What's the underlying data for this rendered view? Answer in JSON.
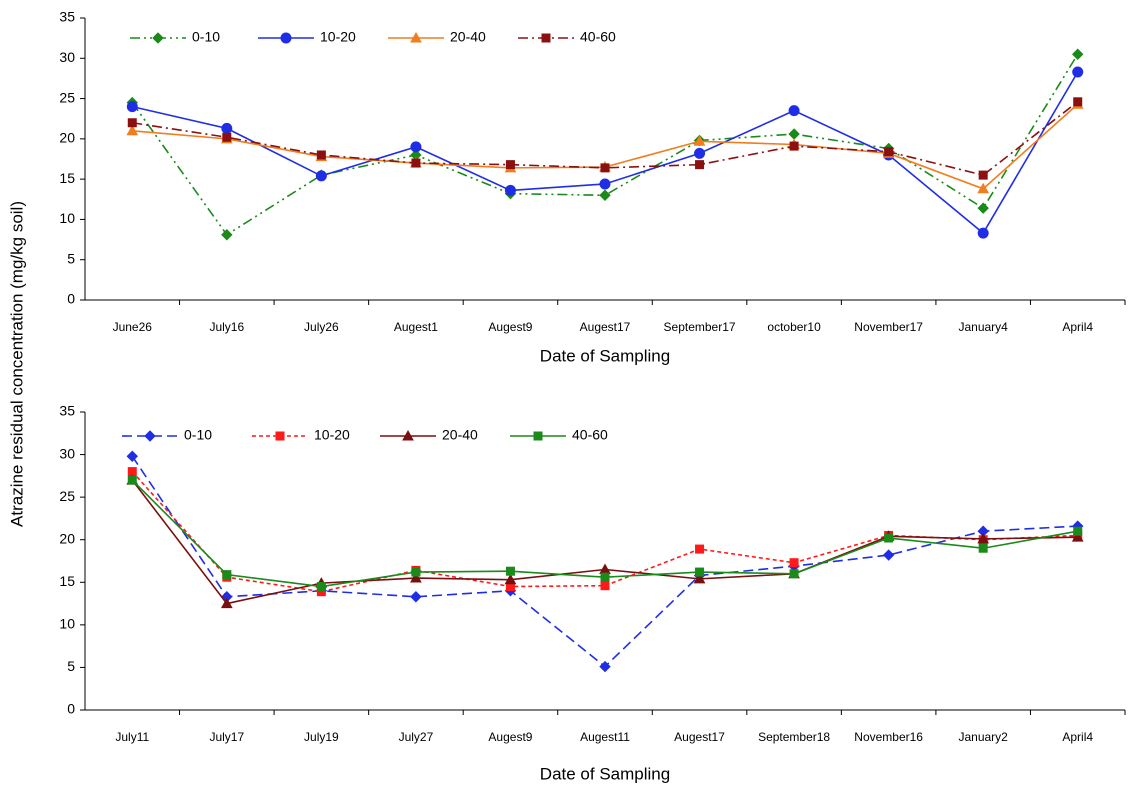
{
  "chart_data": [
    {
      "type": "line",
      "xlabel": "Date of Sampling",
      "ylabel": "Atrazine residual concentration (mg/kg soil)",
      "categories": [
        "June26",
        "July16",
        "July26",
        "Augest1",
        "Augest9",
        "Augest17",
        "September17",
        "october10",
        "November17",
        "January4",
        "April4"
      ],
      "ylim": [
        0,
        35
      ],
      "yticks": [
        0,
        5,
        10,
        15,
        20,
        25,
        30,
        35
      ],
      "grid": false,
      "legend": "top-left",
      "series": [
        {
          "name": "0-10",
          "color": "#1a8a1a",
          "marker": "diamond",
          "dash": "10 4 2 4 2 4",
          "values": [
            24.5,
            8.1,
            15.5,
            18,
            13.2,
            13,
            19.8,
            20.6,
            18.8,
            11.4,
            30.5
          ]
        },
        {
          "name": "10-20",
          "color": "#1f2ee6",
          "marker": "circle",
          "dash": "none",
          "values": [
            24,
            21.3,
            15.4,
            19,
            13.6,
            14.4,
            18.2,
            23.5,
            18,
            8.3,
            28.3
          ]
        },
        {
          "name": "20-40",
          "color": "#f07d1e",
          "marker": "triangle",
          "dash": "none",
          "values": [
            21,
            20,
            17.8,
            17,
            16.4,
            16.5,
            19.7,
            19.3,
            18.2,
            13.8,
            24.3
          ]
        },
        {
          "name": "40-60",
          "color": "#8b1010",
          "marker": "square",
          "dash": "10 4 2 4",
          "values": [
            22,
            20.2,
            18,
            17,
            16.8,
            16.4,
            16.8,
            19.1,
            18.4,
            15.5,
            24.6
          ]
        }
      ]
    },
    {
      "type": "line",
      "xlabel": "Date of Sampling",
      "categories": [
        "July11",
        "July17",
        "July19",
        "July27",
        "Augest9",
        "Augest11",
        "Augest17",
        "September18",
        "November16",
        "January2",
        "April4"
      ],
      "ylim": [
        0,
        35
      ],
      "yticks": [
        0,
        5,
        10,
        15,
        20,
        25,
        30,
        35
      ],
      "grid": false,
      "legend": "top-left",
      "series": [
        {
          "name": "0-10",
          "color": "#1f2ee6",
          "marker": "diamond",
          "dash": "10 5",
          "values": [
            29.8,
            13.3,
            14,
            13.3,
            14,
            5.1,
            15.8,
            16.9,
            18.2,
            21,
            21.6
          ]
        },
        {
          "name": "10-20",
          "color": "#ff1a1a",
          "marker": "square",
          "dash": "4 3",
          "values": [
            28,
            15.6,
            13.9,
            16.4,
            14.5,
            14.6,
            18.9,
            17.3,
            20.5,
            20,
            20.5
          ]
        },
        {
          "name": "20-40",
          "color": "#7a0f0f",
          "marker": "triangle",
          "dash": "none",
          "values": [
            27,
            12.5,
            14.9,
            15.5,
            15.3,
            16.5,
            15.4,
            16,
            20.4,
            20.1,
            20.3
          ]
        },
        {
          "name": "40-60",
          "color": "#1a8a1a",
          "marker": "square",
          "dash": "none",
          "values": [
            27,
            15.9,
            14.5,
            16.2,
            16.3,
            15.6,
            16.2,
            16,
            20.2,
            19,
            21
          ]
        }
      ]
    }
  ]
}
